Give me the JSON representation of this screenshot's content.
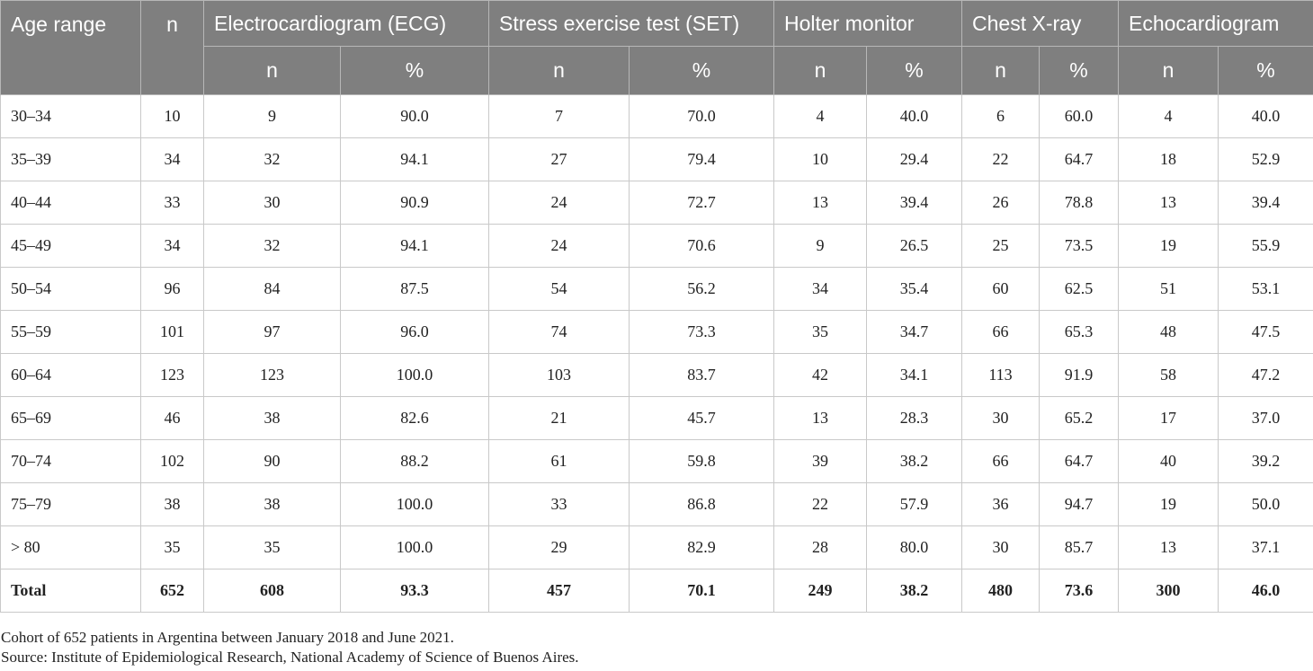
{
  "headers": {
    "age_range": "Age range",
    "n": "n",
    "groups": [
      "Electrocardiogram (ECG)",
      "Stress exercise test (SET)",
      "Holter monitor",
      "Chest X-ray",
      "Echocardiogram"
    ],
    "sub_n": "n",
    "sub_pct": "%"
  },
  "rows": [
    [
      "30–34",
      "10",
      "9",
      "90.0",
      "7",
      "70.0",
      "4",
      "40.0",
      "6",
      "60.0",
      "4",
      "40.0"
    ],
    [
      "35–39",
      "34",
      "32",
      "94.1",
      "27",
      "79.4",
      "10",
      "29.4",
      "22",
      "64.7",
      "18",
      "52.9"
    ],
    [
      "40–44",
      "33",
      "30",
      "90.9",
      "24",
      "72.7",
      "13",
      "39.4",
      "26",
      "78.8",
      "13",
      "39.4"
    ],
    [
      "45–49",
      "34",
      "32",
      "94.1",
      "24",
      "70.6",
      "9",
      "26.5",
      "25",
      "73.5",
      "19",
      "55.9"
    ],
    [
      "50–54",
      "96",
      "84",
      "87.5",
      "54",
      "56.2",
      "34",
      "35.4",
      "60",
      "62.5",
      "51",
      "53.1"
    ],
    [
      "55–59",
      "101",
      "97",
      "96.0",
      "74",
      "73.3",
      "35",
      "34.7",
      "66",
      "65.3",
      "48",
      "47.5"
    ],
    [
      "60–64",
      "123",
      "123",
      "100.0",
      "103",
      "83.7",
      "42",
      "34.1",
      "113",
      "91.9",
      "58",
      "47.2"
    ],
    [
      "65–69",
      "46",
      "38",
      "82.6",
      "21",
      "45.7",
      "13",
      "28.3",
      "30",
      "65.2",
      "17",
      "37.0"
    ],
    [
      "70–74",
      "102",
      "90",
      "88.2",
      "61",
      "59.8",
      "39",
      "38.2",
      "66",
      "64.7",
      "40",
      "39.2"
    ],
    [
      "75–79",
      "38",
      "38",
      "100.0",
      "33",
      "86.8",
      "22",
      "57.9",
      "36",
      "94.7",
      "19",
      "50.0"
    ],
    [
      "> 80",
      "35",
      "35",
      "100.0",
      "29",
      "82.9",
      "28",
      "80.0",
      "30",
      "85.7",
      "13",
      "37.1"
    ]
  ],
  "total": [
    "Total",
    "652",
    "608",
    "93.3",
    "457",
    "70.1",
    "249",
    "38.2",
    "480",
    "73.6",
    "300",
    "46.0"
  ],
  "notes": [
    "Cohort of 652 patients in Argentina between January 2018 and June 2021.",
    "Source: Institute of Epidemiological Research, National Academy of Science of Buenos Aires."
  ]
}
